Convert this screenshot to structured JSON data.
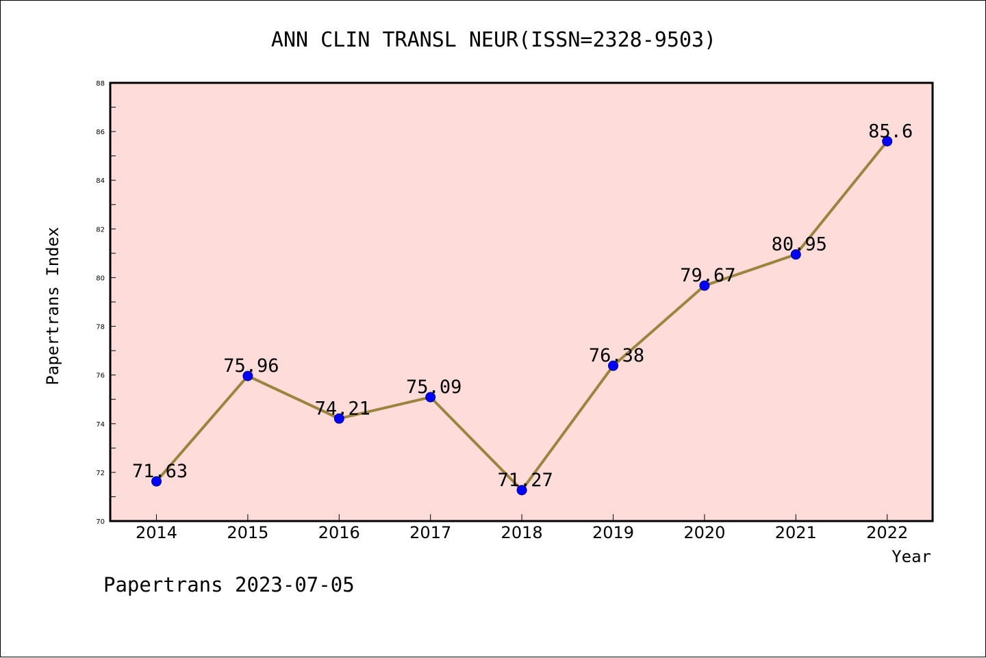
{
  "chart_data": {
    "type": "line",
    "title": "ANN CLIN TRANSL NEUR(ISSN=2328-9503)",
    "xlabel": "Year",
    "ylabel": "Papertrans Index",
    "categories": [
      "2014",
      "2015",
      "2016",
      "2017",
      "2018",
      "2019",
      "2020",
      "2021",
      "2022"
    ],
    "values": [
      71.63,
      75.96,
      74.21,
      75.09,
      71.27,
      76.38,
      79.67,
      80.95,
      85.6
    ],
    "data_labels": [
      "71.63",
      "75.96",
      "74.21",
      "75.09",
      "71.27",
      "76.38",
      "79.67",
      "80.95",
      "85.6"
    ],
    "ylim": [
      70,
      88
    ],
    "yticks": [
      "70",
      "72",
      "74",
      "76",
      "78",
      "80",
      "82",
      "84",
      "86",
      "88"
    ],
    "grid": false,
    "legend": "none",
    "footer": "Papertrans 2023-07-05",
    "colors": {
      "plot_background": "#fddcda",
      "line": "#9a843e",
      "marker_fill": "#0000ff",
      "marker_edge": "#000080",
      "axis": "#000000",
      "text": "#000000"
    }
  }
}
